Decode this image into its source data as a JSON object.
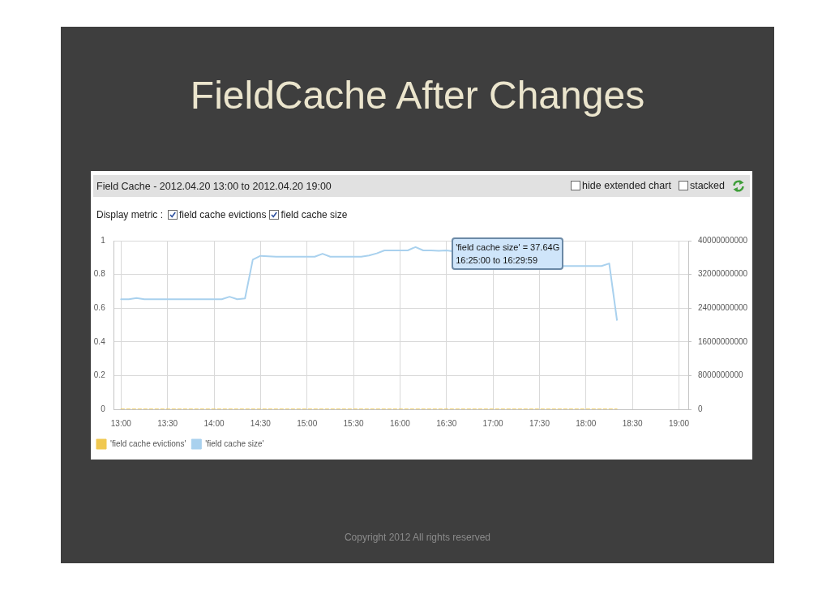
{
  "chart_data": {
    "type": "line",
    "title": "FieldCache After Changes",
    "subtitle": "Field Cache - 2012.04.20 13:00 to 2012.04.20 19:00",
    "x": [
      13,
      13.083,
      13.167,
      13.25,
      13.333,
      13.417,
      13.5,
      13.583,
      13.667,
      13.75,
      13.833,
      13.917,
      14,
      14.083,
      14.167,
      14.25,
      14.333,
      14.417,
      14.5,
      14.583,
      14.667,
      14.75,
      14.833,
      14.917,
      15,
      15.083,
      15.167,
      15.25,
      15.333,
      15.417,
      15.5,
      15.583,
      15.667,
      15.75,
      15.833,
      15.917,
      16,
      16.083,
      16.167,
      16.25,
      16.333,
      16.417,
      16.5,
      16.583,
      16.667,
      16.75,
      16.833,
      16.917,
      17,
      17.083,
      17.167,
      17.25,
      17.333,
      17.417,
      17.5,
      17.583,
      17.667,
      17.75,
      17.833,
      17.917,
      18,
      18.083,
      18.167,
      18.25,
      18.333
    ],
    "series": [
      {
        "name": "'field cache evictions'",
        "color": "#f0c850",
        "line_style": "dashed",
        "values": [
          0,
          0,
          0,
          0,
          0,
          0,
          0,
          0,
          0,
          0,
          0,
          0,
          0,
          0,
          0,
          0,
          0,
          0,
          0,
          0,
          0,
          0,
          0,
          0,
          0,
          0,
          0,
          0,
          0,
          0,
          0,
          0,
          0,
          0,
          0,
          0,
          0,
          0,
          0,
          0,
          0,
          0,
          0,
          0,
          0,
          0,
          0,
          0,
          0,
          0,
          0,
          0,
          0,
          0,
          0,
          0,
          0,
          0,
          0,
          0,
          0,
          0,
          0,
          0,
          0
        ]
      },
      {
        "name": "'field cache size'",
        "color": "#a9d1ee",
        "axis": "y2",
        "values": [
          26100000000,
          26100000000,
          26400000000,
          26100000000,
          26100000000,
          26100000000,
          26100000000,
          26100000000,
          26100000000,
          26100000000,
          26100000000,
          26100000000,
          26100000000,
          26100000000,
          26700000000,
          26100000000,
          26300000000,
          35500000000,
          36400000000,
          36300000000,
          36200000000,
          36200000000,
          36200000000,
          36200000000,
          36200000000,
          36200000000,
          36900000000,
          36200000000,
          36200000000,
          36200000000,
          36200000000,
          36200000000,
          36500000000,
          37000000000,
          37700000000,
          37700000000,
          37700000000,
          37700000000,
          38500000000,
          37700000000,
          37700000000,
          37600000000,
          37700000000,
          null,
          null,
          null,
          null,
          null,
          null,
          null,
          null,
          null,
          null,
          null,
          null,
          null,
          null,
          34000000000,
          34000000000,
          34000000000,
          34000000000,
          34000000000,
          34000000000,
          34600000000,
          21200000000
        ]
      }
    ],
    "xlim": [
      12.925,
      19.1
    ],
    "xticks": [
      {
        "value": 13,
        "label": "13:00"
      },
      {
        "value": 13.5,
        "label": "13:30"
      },
      {
        "value": 14,
        "label": "14:00"
      },
      {
        "value": 14.5,
        "label": "14:30"
      },
      {
        "value": 15,
        "label": "15:00"
      },
      {
        "value": 15.5,
        "label": "15:30"
      },
      {
        "value": 16,
        "label": "16:00"
      },
      {
        "value": 16.5,
        "label": "16:30"
      },
      {
        "value": 17,
        "label": "17:00"
      },
      {
        "value": 17.5,
        "label": "17:30"
      },
      {
        "value": 18,
        "label": "18:00"
      },
      {
        "value": 18.5,
        "label": "18:30"
      },
      {
        "value": 19,
        "label": "19:00"
      }
    ],
    "ylim": [
      0,
      1
    ],
    "yticks": [
      0,
      0.2,
      0.4,
      0.6,
      0.8,
      1
    ],
    "y2lim": [
      0,
      40000000000
    ],
    "y2ticks": [
      0,
      8000000000,
      16000000000,
      24000000000,
      32000000000,
      40000000000
    ],
    "grid": true,
    "legend": "bottom left",
    "annotations": [
      "hide extended chart",
      "stacked",
      "Display metric :",
      "field cache evictions",
      "field cache size",
      "'field cache size' = 37.64G\n16:25:00 to 16:29:59",
      "Copyright 2012 All rights reserved"
    ]
  }
}
